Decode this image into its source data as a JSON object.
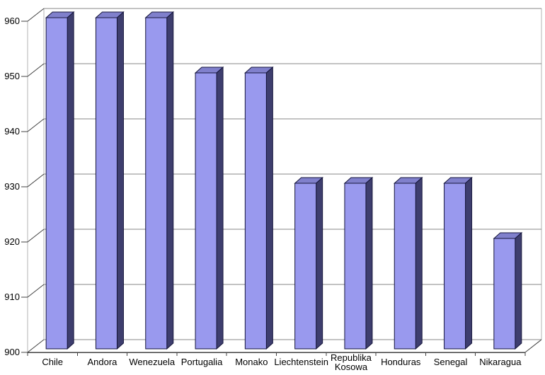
{
  "chart_data": {
    "type": "bar",
    "style": "3d-oblique",
    "title": "",
    "xlabel": "",
    "ylabel": "",
    "categories": [
      "Chile",
      "Andora",
      "Wenezuela",
      "Portugalia",
      "Monako",
      "Liechtenstein",
      "Republika Kosowa",
      "Honduras",
      "Senegal",
      "Nikaragua"
    ],
    "values": [
      960,
      960,
      960,
      950,
      950,
      930,
      930,
      930,
      930,
      920
    ],
    "ylim": [
      900,
      960
    ],
    "yticks": [
      900,
      910,
      920,
      930,
      940,
      950,
      960
    ],
    "grid": true,
    "legend": false,
    "colors": {
      "background": "#ffffff",
      "bar_front": "#9999ee",
      "bar_top": "#8080cc",
      "bar_side": "#3e3e6e",
      "bar_outline": "#16163c",
      "gridline": "#878787",
      "wall_edge": "#b3b3b3",
      "tick_line": "#404040",
      "label_text": "#000000"
    }
  }
}
